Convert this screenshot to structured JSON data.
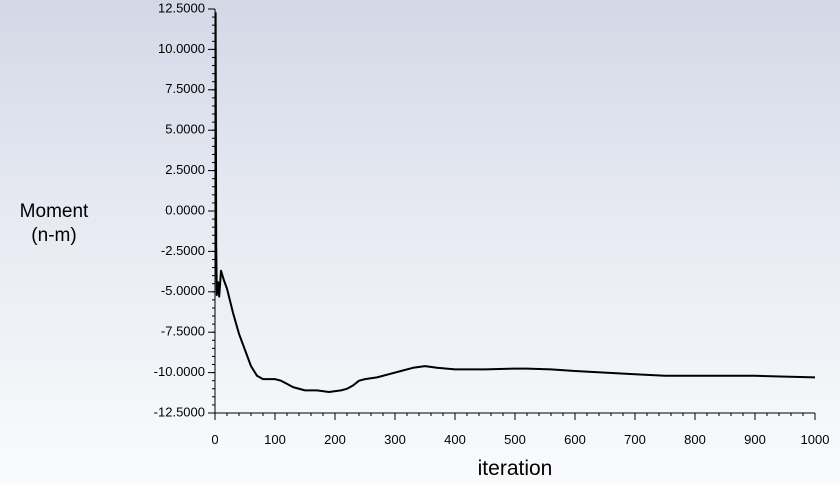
{
  "chart_data": {
    "type": "line",
    "xlabel": "iteration",
    "ylabel": "Moment\n(n-m)",
    "xlim": [
      0,
      1000
    ],
    "ylim": [
      -12.5,
      12.5
    ],
    "x_ticks": [
      0,
      100,
      200,
      300,
      400,
      500,
      600,
      700,
      800,
      900,
      1000
    ],
    "x_tick_labels": [
      "0",
      "100",
      "200",
      "300",
      "400",
      "500",
      "600",
      "700",
      "800",
      "900",
      "1000"
    ],
    "y_ticks": [
      12.5,
      10,
      7.5,
      5,
      2.5,
      0,
      -2.5,
      -5,
      -7.5,
      -10,
      -12.5
    ],
    "y_tick_labels": [
      "12.5000",
      "10.0000",
      "7.5000",
      "5.0000",
      "2.5000",
      "0.0000",
      "-2.5000",
      "-5.0000",
      "-7.5000",
      "-10.0000",
      "-12.5000"
    ],
    "grid": false,
    "series": [
      {
        "x": [
          1,
          2,
          3,
          5,
          7,
          10,
          15,
          20,
          30,
          40,
          50,
          60,
          70,
          80,
          90,
          100,
          110,
          120,
          130,
          150,
          170,
          190,
          210,
          220,
          230,
          240,
          250,
          270,
          290,
          310,
          330,
          350,
          370,
          400,
          450,
          500,
          520,
          560,
          600,
          650,
          700,
          750,
          800,
          850,
          900,
          950,
          1000
        ],
        "y": [
          12.3,
          -2.0,
          -5.2,
          -4.4,
          -5.3,
          -3.7,
          -4.3,
          -4.8,
          -6.3,
          -7.6,
          -8.6,
          -9.6,
          -10.2,
          -10.4,
          -10.4,
          -10.4,
          -10.5,
          -10.7,
          -10.9,
          -11.1,
          -11.1,
          -11.2,
          -11.1,
          -11.0,
          -10.8,
          -10.5,
          -10.4,
          -10.3,
          -10.1,
          -9.9,
          -9.7,
          -9.6,
          -9.7,
          -9.8,
          -9.8,
          -9.75,
          -9.75,
          -9.8,
          -9.9,
          -10.0,
          -10.1,
          -10.2,
          -10.2,
          -10.2,
          -10.2,
          -10.25,
          -10.3
        ]
      }
    ]
  }
}
